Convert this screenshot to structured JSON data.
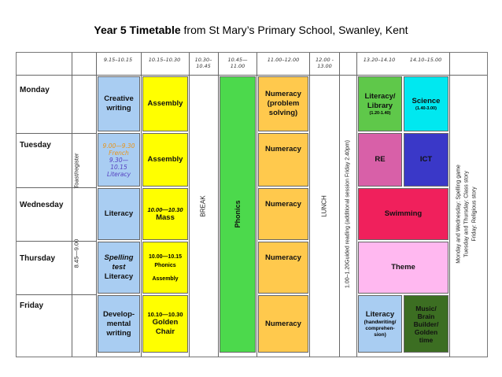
{
  "title": {
    "bold": "Year 5 Timetable",
    "rest": " from St Mary’s Primary  School, Swanley, Kent"
  },
  "headers": {
    "h1": "9.15–10.15",
    "h2": "10.15–10.30",
    "h3a": "10.30–",
    "h3b": "10.45",
    "h4a": "10.45—",
    "h4b": "11.00",
    "h5": "11.00–12.00",
    "h6a": "12.00 -",
    "h6b": "13.00",
    "h7": "13.20–14.10",
    "h8": "14.10–15.00"
  },
  "days": [
    "Monday",
    "Tuesday",
    "Wednesday",
    "Thursday",
    "Friday"
  ],
  "vertical": {
    "time_0845": "8.45—9.00",
    "toast": "Toast/register",
    "break": "BREAK",
    "phonics": "Phonics",
    "lunch": "LUNCH",
    "guided": "1.00–1.20Guided reading (additional session Friday 2.40pm)",
    "friday_notes": [
      "Monday and Wednesday: Spelling game",
      "Tuesday and Thursday: Class story",
      "Friday: Religious story"
    ]
  },
  "cells": {
    "mon_p1": "Creative\nwriting",
    "mon_p2": "Assembly",
    "mon_num": "Numeracy\n(problem\nsolving)",
    "mon_lit": "Literacy/\nLibrary",
    "mon_lit_time": "(1.20-1.40)",
    "mon_sci": "Science",
    "mon_sci_time": "(1.40-3.00)",
    "tue_p1": [
      "9.00—9.30",
      "French",
      "9.30—",
      "10.15",
      "Literacy"
    ],
    "tue_p2": "Assembly",
    "tue_num": "Numeracy",
    "tue_re": "RE",
    "tue_ict": "ICT",
    "wed_p1": "Literacy",
    "wed_p2_time": "10.00—10.30",
    "wed_p2": "Mass",
    "wed_num": "Numeracy",
    "wed_swim": "Swimming",
    "thu_p1": "Spelling\ntest",
    "thu_p1b": "Literacy",
    "thu_p2_time": "10.00—10.15",
    "thu_p2a": "Phonics",
    "thu_p2b": "Assembly",
    "thu_num": "Numeracy",
    "thu_theme": "Theme",
    "fri_p1": "Develop-\nmental\nwriting",
    "fri_p2_time": "10.10—10.30",
    "fri_p2": "Golden\nChair",
    "fri_num": "Numeracy",
    "fri_lit": "Literacy",
    "fri_lit_sub": "(handwriting/\ncomprehen-\nsion)",
    "fri_music": "Music/\nBrain\nBuilder/\nGolden\ntime"
  },
  "colors": {
    "blue": "#a9cdf2",
    "yellow": "#ffff00",
    "green": "#4cd94c",
    "orange": "#ffc94d",
    "lime": "#5fc84a",
    "cyan": "#00e8f0",
    "pink": "#d860a8",
    "navy": "#3a38c8",
    "crimson": "#f0205c",
    "lightpink": "#ffb8f0",
    "darkgreen": "#3c6e22"
  }
}
